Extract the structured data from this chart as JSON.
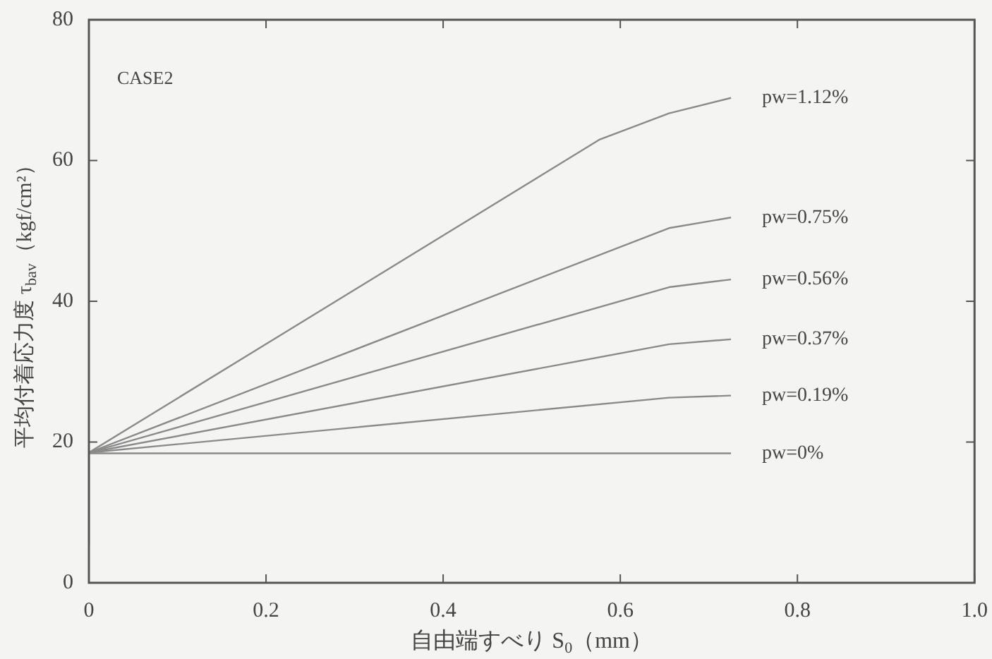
{
  "chart_data": {
    "type": "line",
    "xlabel": "自由端すべり S$_{0}$（mm）",
    "ylabel": "平均付着応力度 τ$_{bav}$（kgf/cm²）",
    "annotations": [
      "CASE2"
    ],
    "xlim": [
      0,
      1
    ],
    "xticks": [
      0,
      0.2,
      0.4,
      0.6,
      0.8,
      {
        "value": 1,
        "label": "1.0"
      }
    ],
    "ylim": [
      0,
      80
    ],
    "yticks": [
      0,
      20,
      40,
      60,
      80
    ],
    "grid": false,
    "legend": false,
    "marker": "none",
    "line_style": "solid",
    "series": [
      {
        "name": "pw=1.12%",
        "color": "#8a8a8a",
        "x": [
          0,
          0.577,
          0.655,
          0.725
        ],
        "values": [
          18.5,
          63,
          66.7,
          68.9
        ]
      },
      {
        "name": "pw=0.75%",
        "color": "#8a8a8a",
        "x": [
          0,
          0.655,
          0.725
        ],
        "values": [
          18.5,
          50.4,
          51.9
        ]
      },
      {
        "name": "pw=0.56%",
        "color": "#8a8a8a",
        "x": [
          0,
          0.655,
          0.725
        ],
        "values": [
          18.5,
          42,
          43.1
        ]
      },
      {
        "name": "pw=0.37%",
        "color": "#8a8a8a",
        "x": [
          0,
          0.655,
          0.725
        ],
        "values": [
          18.5,
          33.9,
          34.6
        ]
      },
      {
        "name": "pw=0.19%",
        "color": "#8a8a8a",
        "x": [
          0,
          0.655,
          0.725
        ],
        "values": [
          18.5,
          26.3,
          26.6
        ]
      },
      {
        "name": "pw=0%",
        "color": "#8a8a8a",
        "x": [
          0,
          0,
          0.725
        ],
        "values": [
          5.4,
          18.4,
          18.4
        ]
      }
    ]
  }
}
